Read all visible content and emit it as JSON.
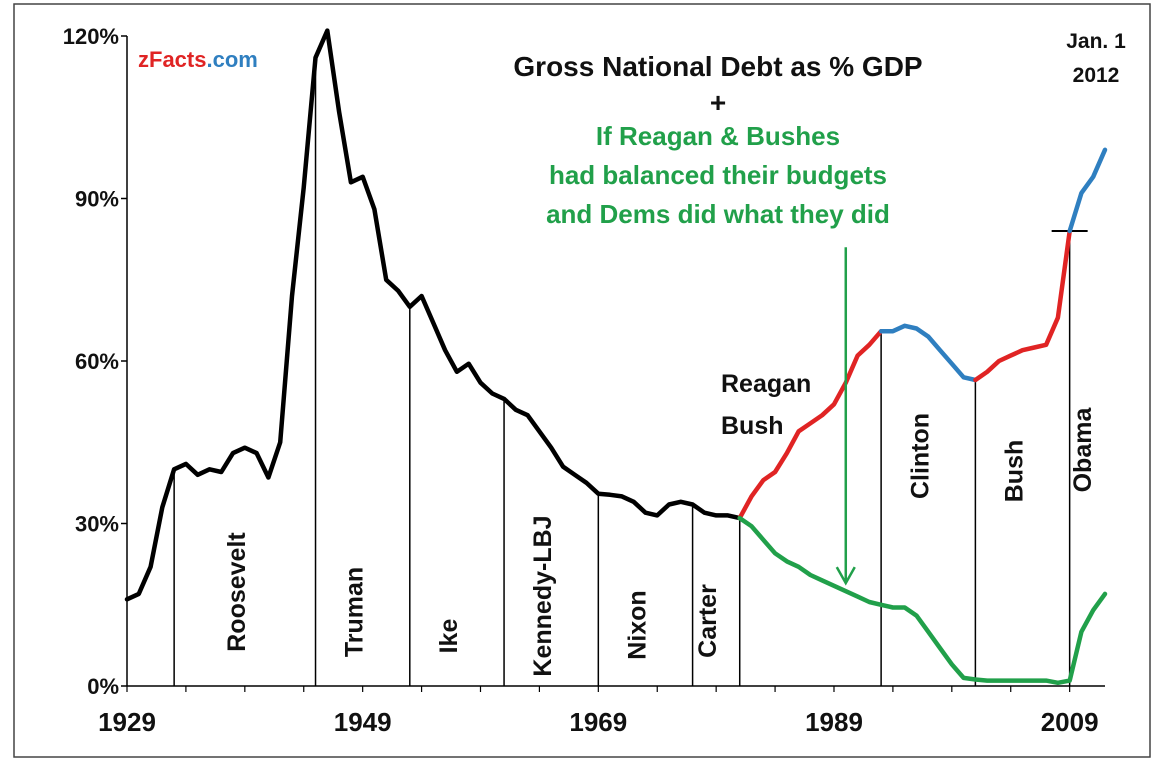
{
  "chart_data": {
    "type": "line",
    "title": "Gross National Debt  as % GDP",
    "title_plus": "+",
    "subtitle_lines": [
      "If Reagan & Bushes",
      "had balanced their budgets",
      "and Dems did what they did"
    ],
    "brand": {
      "prefix": "zFacts",
      "suffix": ".com"
    },
    "date_lines": [
      "Jan. 1",
      "2012"
    ],
    "xlim": [
      1929,
      2012
    ],
    "ylim": [
      0,
      120
    ],
    "yticks": [
      0,
      30,
      60,
      90,
      120
    ],
    "ytick_labels": [
      "0%",
      "30%",
      "60%",
      "90%",
      "120%"
    ],
    "xticks": [
      1929,
      1949,
      1969,
      1989,
      2009
    ],
    "xtick_labels": [
      "1929",
      "1949",
      "1969",
      "1989",
      "2009"
    ],
    "grid": false,
    "colors": {
      "actual_before_1981": "#000000",
      "republican": "#e02424",
      "democrat_clinton_obama": "#2f7fc0",
      "counterfactual": "#21a04a",
      "arrow": "#21a04a",
      "brand_red": "#e02424",
      "brand_blue": "#2f7fc0",
      "divider": "#000000"
    },
    "series": [
      {
        "segment": "1929-1981",
        "color": "#000000",
        "points": [
          [
            1929,
            16
          ],
          [
            1930,
            17
          ],
          [
            1931,
            22
          ],
          [
            1932,
            33
          ],
          [
            1933,
            40
          ],
          [
            1934,
            41
          ],
          [
            1935,
            39
          ],
          [
            1936,
            40
          ],
          [
            1937,
            39.5
          ],
          [
            1938,
            43
          ],
          [
            1939,
            44
          ],
          [
            1940,
            43
          ],
          [
            1941,
            38.5
          ],
          [
            1942,
            45
          ],
          [
            1943,
            72
          ],
          [
            1944,
            92
          ],
          [
            1945,
            116
          ],
          [
            1946,
            121
          ],
          [
            1947,
            106
          ],
          [
            1948,
            93
          ],
          [
            1949,
            94
          ],
          [
            1950,
            88
          ],
          [
            1951,
            75
          ],
          [
            1952,
            73
          ],
          [
            1953,
            70
          ],
          [
            1954,
            72
          ],
          [
            1955,
            67
          ],
          [
            1956,
            62
          ],
          [
            1957,
            58
          ],
          [
            1958,
            59.5
          ],
          [
            1959,
            56
          ],
          [
            1960,
            54
          ],
          [
            1961,
            53
          ],
          [
            1962,
            51
          ],
          [
            1963,
            50
          ],
          [
            1964,
            47
          ],
          [
            1965,
            44
          ],
          [
            1966,
            40.5
          ],
          [
            1967,
            39
          ],
          [
            1968,
            37.5
          ],
          [
            1969,
            35.5
          ],
          [
            1970,
            35.3
          ],
          [
            1971,
            35
          ],
          [
            1972,
            34
          ],
          [
            1973,
            32
          ],
          [
            1974,
            31.5
          ],
          [
            1975,
            33.5
          ],
          [
            1976,
            34
          ],
          [
            1977,
            33.5
          ],
          [
            1978,
            32
          ],
          [
            1979,
            31.5
          ],
          [
            1980,
            31.5
          ],
          [
            1981,
            31
          ]
        ]
      },
      {
        "segment": "1981-1993",
        "color": "#e02424",
        "points": [
          [
            1981,
            31
          ],
          [
            1982,
            35
          ],
          [
            1983,
            38
          ],
          [
            1984,
            39.5
          ],
          [
            1985,
            43
          ],
          [
            1986,
            47
          ],
          [
            1987,
            48.5
          ],
          [
            1988,
            50
          ],
          [
            1989,
            52
          ],
          [
            1990,
            56
          ],
          [
            1991,
            61
          ],
          [
            1992,
            63
          ],
          [
            1993,
            65.5
          ]
        ]
      },
      {
        "segment": "1993-2001",
        "color": "#2f7fc0",
        "points": [
          [
            1993,
            65.5
          ],
          [
            1994,
            65.5
          ],
          [
            1995,
            66.5
          ],
          [
            1996,
            66
          ],
          [
            1997,
            64.5
          ],
          [
            1998,
            62
          ],
          [
            1999,
            59.5
          ],
          [
            2000,
            57
          ],
          [
            2001,
            56.5
          ]
        ]
      },
      {
        "segment": "2001-2009",
        "color": "#e02424",
        "points": [
          [
            2001,
            56.5
          ],
          [
            2002,
            58
          ],
          [
            2003,
            60
          ],
          [
            2004,
            61
          ],
          [
            2005,
            62
          ],
          [
            2006,
            62.5
          ],
          [
            2007,
            63
          ],
          [
            2008,
            68
          ],
          [
            2009,
            84
          ]
        ]
      },
      {
        "segment": "2009-2012",
        "color": "#2f7fc0",
        "points": [
          [
            2009,
            84
          ],
          [
            2010,
            91
          ],
          [
            2011,
            94
          ],
          [
            2012,
            99
          ]
        ]
      },
      {
        "segment": "counterfactual",
        "color": "#21a04a",
        "points": [
          [
            1981,
            31
          ],
          [
            1982,
            29.5
          ],
          [
            1983,
            27
          ],
          [
            1984,
            24.5
          ],
          [
            1985,
            23
          ],
          [
            1986,
            22
          ],
          [
            1987,
            20.5
          ],
          [
            1988,
            19.5
          ],
          [
            1989,
            18.5
          ],
          [
            1990,
            17.5
          ],
          [
            1991,
            16.5
          ],
          [
            1992,
            15.5
          ],
          [
            1993,
            15
          ],
          [
            1994,
            14.5
          ],
          [
            1995,
            14.5
          ],
          [
            1996,
            13
          ],
          [
            1997,
            10
          ],
          [
            1998,
            7
          ],
          [
            1999,
            4
          ],
          [
            2000,
            1.5
          ],
          [
            2001,
            1.2
          ],
          [
            2002,
            1
          ],
          [
            2003,
            1
          ],
          [
            2004,
            1
          ],
          [
            2005,
            1
          ],
          [
            2006,
            1
          ],
          [
            2007,
            1
          ],
          [
            2008,
            0.6
          ],
          [
            2009,
            1
          ],
          [
            2010,
            10
          ],
          [
            2011,
            14
          ],
          [
            2012,
            17
          ]
        ]
      }
    ],
    "eras": [
      {
        "label": "Roosevelt",
        "start_year": 1933,
        "divider_top": 40
      },
      {
        "label": "Truman",
        "start_year": 1945,
        "divider_top": 116
      },
      {
        "label": "Ike",
        "start_year": 1953,
        "divider_top": 70
      },
      {
        "label": "Kennedy-LBJ",
        "start_year": 1961,
        "divider_top": 53
      },
      {
        "label": "Nixon",
        "start_year": 1969,
        "divider_top": 35.5
      },
      {
        "label": "Carter",
        "start_year": 1977,
        "divider_top": 33.5
      },
      {
        "label": "Reagan",
        "start_year": 1981,
        "divider_top": 31
      },
      {
        "label": "Clinton",
        "start_year": 1993,
        "divider_top": 65.5
      },
      {
        "label": "Bush",
        "start_year": 2001,
        "divider_top": 56.5
      },
      {
        "label": "Obama",
        "start_year": 2009,
        "divider_top": 84
      }
    ],
    "reagan_bush_label": [
      "Reagan",
      "Bush"
    ],
    "obama_start_marker_value": 84,
    "arrow": {
      "year": 1990,
      "from": 81,
      "to": 19
    }
  }
}
